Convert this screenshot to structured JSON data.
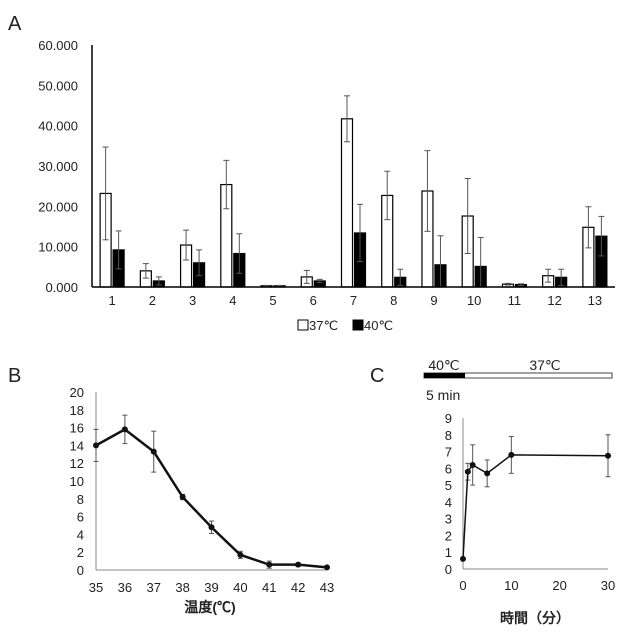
{
  "chart_data": [
    {
      "panel": "A",
      "type": "bar",
      "categories": [
        "1",
        "2",
        "3",
        "4",
        "5",
        "6",
        "7",
        "8",
        "9",
        "10",
        "11",
        "12",
        "13"
      ],
      "ylim": [
        0,
        60
      ],
      "yticks": [
        "0.000",
        "10.000",
        "20.000",
        "30.000",
        "40.000",
        "50.000",
        "60.000"
      ],
      "series": [
        {
          "name": "37℃",
          "color": "#ffffff",
          "values": [
            23.2,
            4.0,
            10.4,
            25.4,
            0.3,
            2.5,
            41.7,
            22.7,
            23.8,
            17.6,
            0.7,
            2.8,
            14.8
          ],
          "errors": [
            11.5,
            1.8,
            3.7,
            6.0,
            0.1,
            1.6,
            5.7,
            6.0,
            10.0,
            9.3,
            0.2,
            1.6,
            5.1
          ]
        },
        {
          "name": "40℃",
          "color": "#000000",
          "values": [
            9.2,
            1.5,
            6.0,
            8.3,
            0.3,
            1.5,
            13.4,
            2.4,
            5.5,
            5.1,
            0.6,
            2.4,
            12.6
          ],
          "errors": [
            4.7,
            1.0,
            3.2,
            4.9,
            0.1,
            0.4,
            7.1,
            2.0,
            7.2,
            7.2,
            0.2,
            2.0,
            4.9
          ]
        }
      ],
      "legend": "bottom"
    },
    {
      "panel": "B",
      "type": "line",
      "x": [
        35,
        36,
        37,
        38,
        39,
        40,
        41,
        42,
        43
      ],
      "y": [
        14.0,
        15.8,
        13.3,
        8.2,
        4.8,
        1.7,
        0.6,
        0.6,
        0.3
      ],
      "errors": [
        1.8,
        1.6,
        2.3,
        0.3,
        0.7,
        0.4,
        0.4,
        0.2,
        0.1
      ],
      "xlim": [
        35,
        43
      ],
      "ylim": [
        0,
        20
      ],
      "xticks": [
        "35",
        "36",
        "37",
        "38",
        "39",
        "40",
        "41",
        "42",
        "43"
      ],
      "yticks": [
        "0",
        "2",
        "4",
        "6",
        "8",
        "10",
        "12",
        "14",
        "16",
        "18",
        "20"
      ],
      "xlabel": "温度(℃)"
    },
    {
      "panel": "C",
      "type": "line",
      "x": [
        0,
        1,
        2,
        5,
        10,
        30
      ],
      "y": [
        0.6,
        5.8,
        6.2,
        5.7,
        6.8,
        6.75
      ],
      "errors": [
        0,
        0.5,
        1.2,
        0.8,
        1.1,
        1.25
      ],
      "xlim": [
        0,
        30
      ],
      "ylim": [
        0,
        9
      ],
      "xticks": [
        "0",
        "10",
        "20",
        "30"
      ],
      "yticks": [
        "0",
        "1",
        "2",
        "3",
        "4",
        "5",
        "6",
        "7",
        "8",
        "9"
      ],
      "xlabel": "時間（分）",
      "protocol": {
        "heat_label": "40℃",
        "recovery_label": "37℃",
        "duration_label": "5 min"
      }
    }
  ],
  "panel_labels": [
    "A",
    "B",
    "C"
  ]
}
